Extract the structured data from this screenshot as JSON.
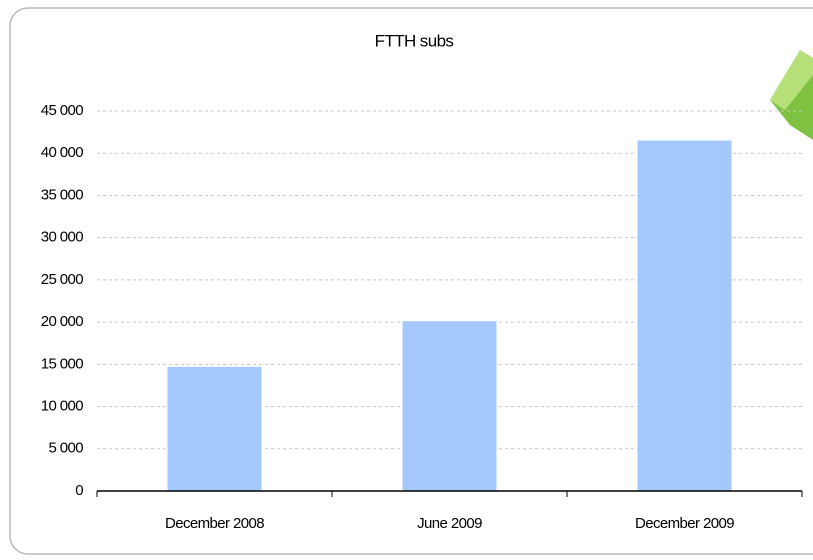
{
  "chart_data": {
    "type": "bar",
    "title": "FTTH subs",
    "categories": [
      "December 2008",
      "June 2009",
      "December 2009"
    ],
    "values": [
      14700,
      20100,
      41500
    ],
    "color": "#a4c8fc",
    "ylim": [
      0,
      45000
    ],
    "yticks": [
      0,
      {
        "value": 5000,
        "label": "5 000"
      },
      {
        "value": 10000,
        "label": "10 000"
      },
      {
        "value": 15000,
        "label": "15 000"
      },
      {
        "value": 20000,
        "label": "20 000"
      },
      {
        "value": 25000,
        "label": "25 000"
      },
      {
        "value": 30000,
        "label": "30 000"
      },
      {
        "value": 35000,
        "label": "35 000"
      },
      {
        "value": 40000,
        "label": "40 000"
      },
      {
        "value": 45000,
        "label": "45 000"
      }
    ],
    "grid": true
  }
}
